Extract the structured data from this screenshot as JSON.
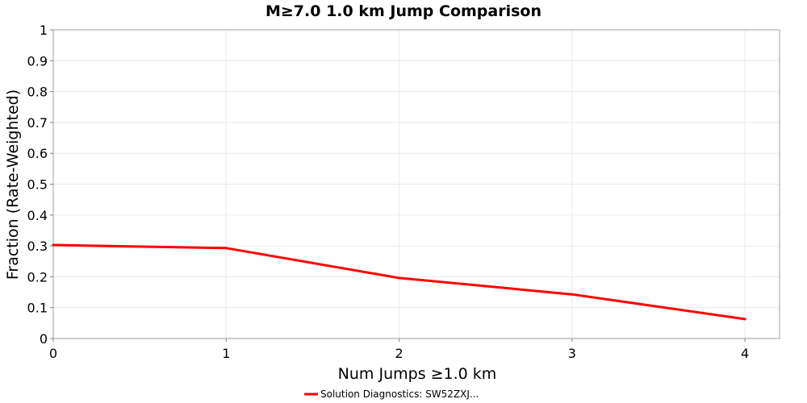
{
  "chart_data": {
    "type": "line",
    "title": "M≥7.0 1.0 km Jump Comparison",
    "xlabel": "Num Jumps ≥1.0 km",
    "ylabel": "Fraction (Rate-Weighted)",
    "xlim": [
      0,
      4.2
    ],
    "ylim": [
      0,
      1
    ],
    "xticks": [
      "0",
      "1",
      "2",
      "3",
      "4"
    ],
    "yticks": [
      "0",
      "0.1",
      "0.2",
      "0.3",
      "0.4",
      "0.5",
      "0.6",
      "0.7",
      "0.8",
      "0.9",
      "1"
    ],
    "grid": true,
    "legend_position": "bottom",
    "series": [
      {
        "name": "Solution Diagnostics: SW52ZXJ...",
        "color": "#ff0000",
        "x": [
          0,
          1,
          2,
          3,
          4
        ],
        "values": [
          0.303,
          0.293,
          0.196,
          0.143,
          0.063
        ]
      }
    ]
  }
}
